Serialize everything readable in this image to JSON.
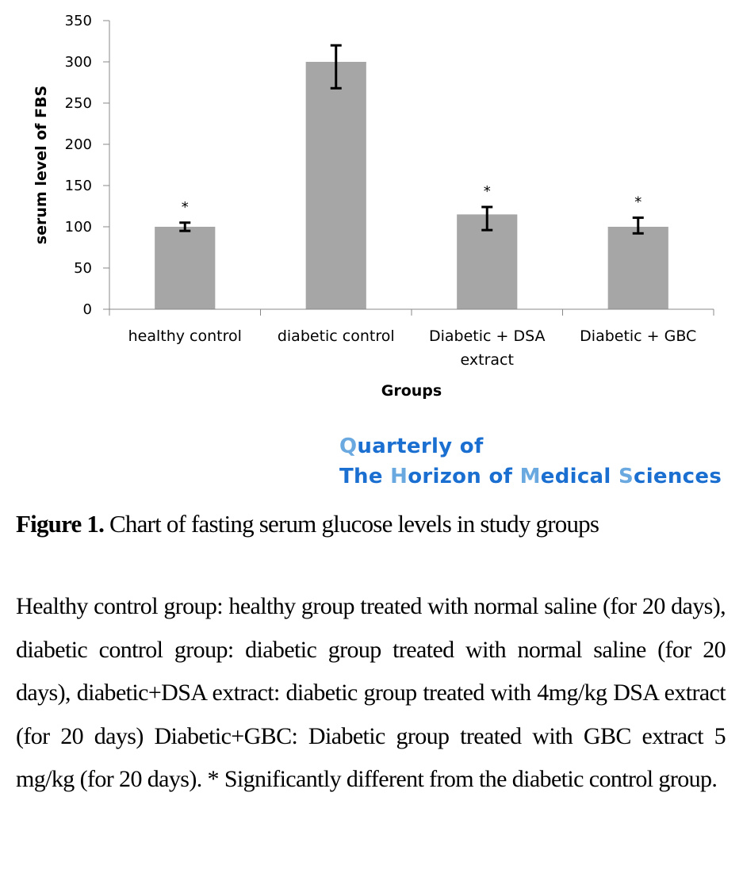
{
  "chart_data": {
    "type": "bar",
    "title": "",
    "xlabel": "Groups",
    "ylabel": "serum level of FBS",
    "ylim": [
      0,
      350
    ],
    "yticks": [
      0,
      50,
      100,
      150,
      200,
      250,
      300,
      350
    ],
    "grid": false,
    "categories": [
      [
        "healthy control"
      ],
      [
        "diabetic control"
      ],
      [
        "Diabetic + DSA",
        "extract"
      ],
      [
        "Diabetic + GBC"
      ]
    ],
    "category_names": [
      "healthy control",
      "diabetic control",
      "Diabetic + DSA extract",
      "Diabetic + GBC"
    ],
    "values": [
      100,
      300,
      115,
      100
    ],
    "error_low": [
      95,
      268,
      96,
      92
    ],
    "error_high": [
      105,
      320,
      124,
      111
    ],
    "significance_markers": [
      "*",
      "",
      "*",
      "*"
    ],
    "bar_color": "#a6a6a6",
    "axis_color": "#888888",
    "error_bar_color": "#000000"
  },
  "watermark": {
    "line1": [
      {
        "t": "Q",
        "accent": true
      },
      {
        "t": "uarterly of",
        "accent": false
      }
    ],
    "line2": [
      {
        "t": "The ",
        "accent": false
      },
      {
        "t": "H",
        "accent": true
      },
      {
        "t": "orizon of ",
        "accent": false
      },
      {
        "t": "M",
        "accent": true
      },
      {
        "t": "edical ",
        "accent": false
      },
      {
        "t": "S",
        "accent": true
      },
      {
        "t": "ciences",
        "accent": false
      }
    ],
    "color": "#1a6fd0",
    "accent_color": "#6aa8e0"
  },
  "caption": {
    "label": "Figure 1.",
    "text": " Chart of fasting serum glucose levels in study groups"
  },
  "description": "Healthy control group: healthy group treated with normal saline (for 20 days), diabetic control group: diabetic group treated with normal saline (for 20 days), diabetic+DSA extract: diabetic group treated with 4mg/kg DSA extract (for 20 days) Diabetic+GBC: Diabetic group treated with GBC extract 5 mg/kg (for 20 days). * Significantly different from the diabetic control group."
}
